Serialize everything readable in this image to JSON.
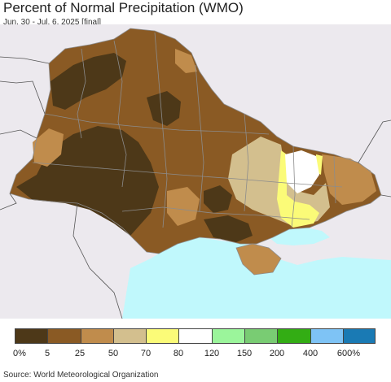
{
  "header": {
    "title": "Percent of Normal Precipitation (WMO)",
    "subtitle": "Jun. 30 - Jul. 6, 2025 [final]"
  },
  "legend": {
    "colors": [
      "#4d3818",
      "#8a5a24",
      "#c08c4c",
      "#d3bf8e",
      "#fbfb78",
      "#ffffff",
      "#9bf59b",
      "#79cc73",
      "#33ad14",
      "#7ec3f5",
      "#1a7ab4"
    ],
    "labels": [
      "0%",
      "5",
      "25",
      "50",
      "70",
      "80",
      "120",
      "150",
      "200",
      "400",
      "600%"
    ]
  },
  "footer": {
    "source": "Source: World Meteorological Organization"
  }
}
